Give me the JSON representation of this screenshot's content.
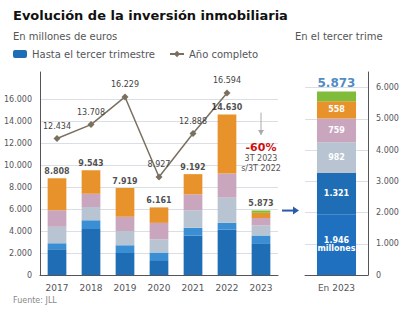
{
  "chart_data": [
    {
      "type": "bar",
      "title": "Evolución de la inversión inmobiliaria",
      "subtitle": "En millones de euros",
      "source": "Fuente: JLL",
      "stacked": true,
      "grid": true,
      "legend": "top",
      "categories": [
        "2017",
        "2018",
        "2019",
        "2020",
        "2021",
        "2022",
        "2023"
      ],
      "series": [
        {
          "name": "Hasta el tercer trimestre",
          "type": "bar",
          "color": "#1e6db5",
          "values": [
            2350,
            4200,
            2000,
            1350,
            3600,
            4150,
            2900
          ]
        },
        {
          "type": "bar",
          "color": "#3a8fd4",
          "values": [
            550,
            800,
            700,
            700,
            700,
            600,
            700
          ]
        },
        {
          "type": "bar",
          "color": "#b8c4d2",
          "values": [
            1500,
            1200,
            1300,
            1200,
            1600,
            2300,
            900
          ]
        },
        {
          "type": "bar",
          "color": "#c9a5be",
          "values": [
            1500,
            1200,
            1300,
            1500,
            1450,
            2200,
            700
          ]
        },
        {
          "type": "bar",
          "color": "#e8922c",
          "values": [
            2908,
            2143,
            2619,
            1411,
            1842,
            5380,
            466
          ]
        },
        {
          "type": "bar",
          "color": "#80bb3a",
          "values": [
            null,
            null,
            null,
            null,
            null,
            null,
            207
          ]
        },
        {
          "name": "Año completo",
          "type": "line",
          "color": "#7a7060",
          "marker": "diamond",
          "data_labels": true,
          "values": [
            12434,
            13708,
            16229,
            8927,
            12888,
            16594,
            null
          ],
          "value_labels": [
            "12.434",
            "13.708",
            "16.229",
            "8.927",
            "12.888",
            "16.594",
            null
          ]
        }
      ],
      "totals": {
        "values": [
          8808,
          9543,
          7919,
          6161,
          9192,
          14630,
          5873
        ],
        "value_labels": [
          "8.808",
          "9.543",
          "7.919",
          "6.161",
          "9.192",
          "14.630",
          "5.873"
        ]
      },
      "annotations": [
        {
          "text": "-60%",
          "color": "#cc1111"
        },
        {
          "text": "3T 2023"
        },
        {
          "text": "s/3T 2022"
        }
      ],
      "ylim": [
        0,
        18500
      ],
      "yticks": [
        0,
        {
          "value": 2000,
          "label": "2.000"
        },
        {
          "value": 4000,
          "label": "4.000"
        },
        {
          "value": 6000,
          "label": "6.000"
        },
        {
          "value": 8000,
          "label": "8.000"
        },
        {
          "value": 10000,
          "label": "10.000"
        },
        {
          "value": 12000,
          "label": "12.000"
        },
        {
          "value": 14000,
          "label": "14.000"
        },
        {
          "value": 16000,
          "label": "16.000"
        }
      ]
    },
    {
      "type": "bar",
      "title": "En el tercer trime",
      "stacked": true,
      "grid": true,
      "categories": [
        "En 2023"
      ],
      "series": [
        {
          "color": "#2070c0",
          "data_labels": true,
          "values": [
            1946
          ],
          "value_labels": [
            "1.946\nmillones"
          ]
        },
        {
          "color": "#1e6db5",
          "data_labels": true,
          "values": [
            1321
          ],
          "value_labels": [
            "1.321"
          ]
        },
        {
          "color": "#b8c4d2",
          "data_labels": true,
          "values": [
            982
          ],
          "value_labels": [
            "982"
          ]
        },
        {
          "color": "#c9a5be",
          "data_labels": true,
          "values": [
            759
          ],
          "value_labels": [
            "759"
          ]
        },
        {
          "color": "#e8922c",
          "data_labels": true,
          "values": [
            558
          ],
          "value_labels": [
            "558"
          ]
        },
        {
          "color": "#80bb3a",
          "data_labels": false,
          "values": [
            307
          ]
        }
      ],
      "totals": {
        "values": [
          5873
        ],
        "value_labels": [
          "5.873"
        ],
        "color": "#1e6db5"
      },
      "ylim": [
        0,
        6500
      ],
      "yticks": [
        0,
        {
          "value": 1000,
          "label": "1.000"
        },
        {
          "value": 2000,
          "label": "2.000"
        },
        {
          "value": 3000,
          "label": "3.000"
        },
        {
          "value": 4000,
          "label": "4.000"
        },
        {
          "value": 5000,
          "label": "5.000"
        },
        {
          "value": 6000,
          "label": "6.000"
        }
      ]
    }
  ]
}
